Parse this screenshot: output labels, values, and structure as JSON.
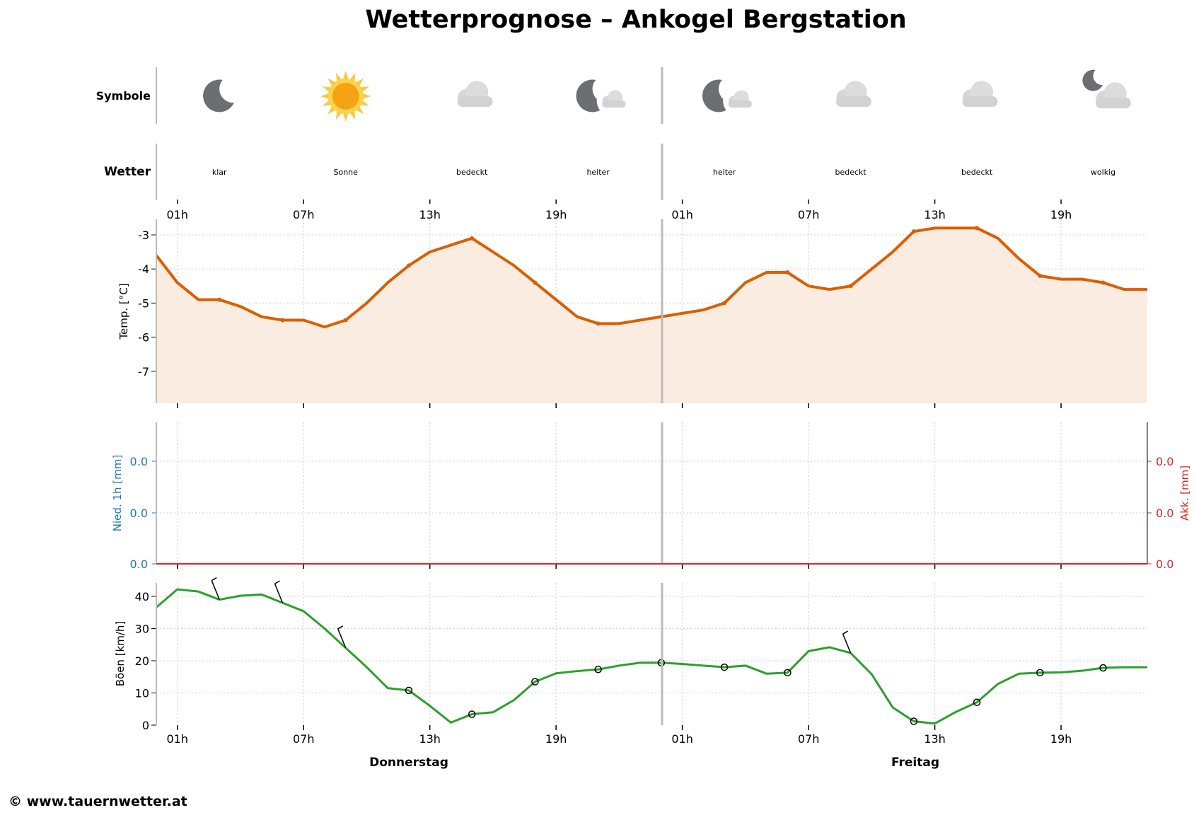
{
  "title": "Wetterprognose – Ankogel Bergstation",
  "copyright": "© www.tauernwetter.at",
  "row_labels": {
    "symbols": "Symbole",
    "weather": "Wetter"
  },
  "days": [
    "Donnerstag",
    "Freitag"
  ],
  "colors": {
    "temperature": "#d95f02",
    "temp_fill": "#fbece1",
    "precip_axis": "#1f77b4",
    "accum_axis": "#d62728",
    "gusts": "#2ca02c",
    "divider": "#bbbbbb"
  },
  "symbols": [
    {
      "icon": "moon-icon",
      "text": "klar"
    },
    {
      "icon": "sun-icon",
      "text": "Sonne"
    },
    {
      "icon": "cloud-icon",
      "text": "bedeckt"
    },
    {
      "icon": "moon-cloud-icon",
      "text": "heiter"
    },
    {
      "icon": "moon-cloud-icon",
      "text": "heiter"
    },
    {
      "icon": "cloud-icon",
      "text": "bedeckt"
    },
    {
      "icon": "cloud-icon",
      "text": "bedeckt"
    },
    {
      "icon": "moon-large-cloud-icon",
      "text": "wolkig"
    }
  ],
  "chart_data": [
    {
      "type": "area",
      "ylabel": "Temp. [°C]",
      "x_ticks": [
        "01h",
        "07h",
        "13h",
        "19h",
        "01h",
        "07h",
        "13h",
        "19h"
      ],
      "x_tick_hours": [
        1,
        7,
        13,
        19,
        25,
        31,
        37,
        43
      ],
      "xlim": [
        0,
        47.1
      ],
      "ylim": [
        -7.72,
        -2.55
      ],
      "y_ticks": [
        -3,
        -4,
        -5,
        -6,
        -7
      ],
      "grid": true,
      "hours": [
        0,
        1,
        2,
        3,
        4,
        5,
        6,
        7,
        8,
        9,
        10,
        11,
        12,
        13,
        14,
        15,
        16,
        17,
        18,
        19,
        20,
        21,
        22,
        23,
        24,
        25,
        26,
        27,
        28,
        29,
        30,
        31,
        32,
        33,
        34,
        35,
        36,
        37,
        38,
        39,
        40,
        41,
        42,
        43,
        44,
        45,
        46,
        47
      ],
      "values": [
        -3.6,
        -4.4,
        -4.9,
        -4.9,
        -5.1,
        -5.4,
        -5.5,
        -5.5,
        -5.7,
        -5.5,
        -5.0,
        -4.4,
        -3.9,
        -3.5,
        -3.3,
        -3.1,
        -3.5,
        -3.9,
        -4.4,
        -4.9,
        -5.4,
        -5.6,
        -5.6,
        -5.5,
        -5.4,
        -5.3,
        -5.2,
        -5.0,
        -4.4,
        -4.1,
        -4.1,
        -4.5,
        -4.6,
        -4.5,
        -4.0,
        -3.5,
        -2.9,
        -2.8,
        -2.8,
        -2.8,
        -3.1,
        -3.7,
        -4.2,
        -4.3,
        -4.3,
        -4.4,
        -4.6,
        -4.6
      ]
    },
    {
      "type": "bar",
      "ylabel": "Nied. 1h [mm]",
      "ylabel_right": "Akk. [mm]",
      "y_ticks": [
        "0.0",
        "0.0",
        "0.0"
      ],
      "y_ticks_right": [
        "0.0",
        "0.0",
        "0.0"
      ],
      "precip_values": [],
      "accumulated": 0.0
    },
    {
      "type": "line",
      "ylabel": "Böen [km/h]",
      "ylim": [
        0,
        44
      ],
      "y_ticks": [
        0,
        10,
        20,
        30,
        40
      ],
      "grid": true,
      "hours": [
        0,
        1,
        2,
        3,
        4,
        5,
        6,
        7,
        8,
        9,
        10,
        11,
        12,
        13,
        14,
        15,
        16,
        17,
        18,
        19,
        20,
        21,
        22,
        23,
        24,
        25,
        26,
        27,
        28,
        29,
        30,
        31,
        32,
        33,
        34,
        35,
        36,
        37,
        38,
        39,
        40,
        41,
        42,
        43,
        44,
        45,
        46,
        47
      ],
      "values": [
        36.6,
        42.2,
        41.5,
        39,
        40.2,
        40.6,
        38,
        35.4,
        30,
        24,
        18,
        11.5,
        10.8,
        6,
        0.8,
        3.4,
        4,
        7.8,
        13.5,
        16.1,
        16.8,
        17.3,
        18.5,
        19.4,
        19.4,
        19,
        18.5,
        18,
        18.5,
        16,
        16.3,
        23,
        24.2,
        22.4,
        15.8,
        5.5,
        1.2,
        0.5,
        4.1,
        7.1,
        12.8,
        16,
        16.3,
        16.4,
        16.9,
        17.8,
        18,
        18
      ],
      "wind_barb_hours": [
        3,
        6,
        9,
        33
      ],
      "calm_marker_hours": [
        12,
        15,
        18,
        21,
        24,
        27,
        30,
        36,
        39,
        42,
        45
      ]
    }
  ]
}
